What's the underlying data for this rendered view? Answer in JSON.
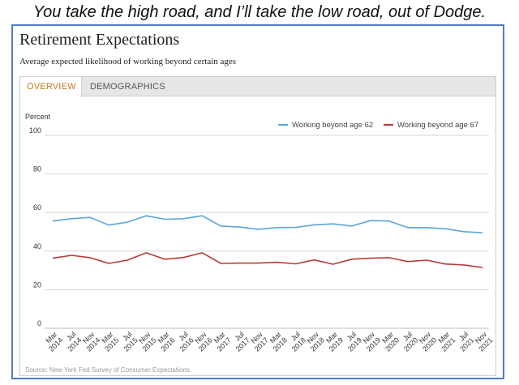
{
  "caption": "You take the high road, and I’ll take the low road, out of Dodge.",
  "title": "Retirement Expectations",
  "subtitle": "Average expected likelihood of working beyond certain ages",
  "tabs": [
    {
      "label": "OVERVIEW",
      "active": true
    },
    {
      "label": "DEMOGRAPHICS",
      "active": false
    }
  ],
  "source": "Source: New York Fed Survey of Consumer Expectations.",
  "chart_data": {
    "type": "line",
    "ylabel": "Percent",
    "ylim": [
      0,
      100
    ],
    "yticks": [
      0,
      20,
      40,
      60,
      80,
      100
    ],
    "grid": true,
    "legend_position": "top-right",
    "categories": [
      "Mar 2014",
      "Jul 2014",
      "Nov 2014",
      "Mar 2015",
      "Jul 2015",
      "Nov 2015",
      "Mar 2016",
      "Jul 2016",
      "Nov 2016",
      "Mar 2017",
      "Jul 2017",
      "Nov 2017",
      "Mar 2018",
      "Jul 2018",
      "Nov 2018",
      "Mar 2019",
      "Jul 2019",
      "Nov 2019",
      "Mar 2020",
      "Jul 2020",
      "Nov 2020",
      "Mar 2021",
      "Jul 2021",
      "Nov 2021"
    ],
    "series": [
      {
        "name": "Working beyond age 62",
        "color": "#5aa6dc",
        "values": [
          55.6,
          56.8,
          57.5,
          53.5,
          55.0,
          58.3,
          56.5,
          56.8,
          58.3,
          53.0,
          52.5,
          51.3,
          52.2,
          52.3,
          53.6,
          54.1,
          53.0,
          55.8,
          55.6,
          52.2,
          52.2,
          51.6,
          50.1,
          49.5
        ]
      },
      {
        "name": "Working beyond age 67",
        "color": "#b93a3a",
        "values": [
          36.3,
          37.8,
          36.6,
          33.6,
          35.3,
          39.1,
          35.8,
          36.7,
          39.1,
          33.6,
          33.8,
          33.8,
          34.2,
          33.4,
          35.4,
          33.2,
          35.8,
          36.3,
          36.6,
          34.6,
          35.3,
          33.3,
          32.8,
          31.5
        ]
      }
    ]
  }
}
